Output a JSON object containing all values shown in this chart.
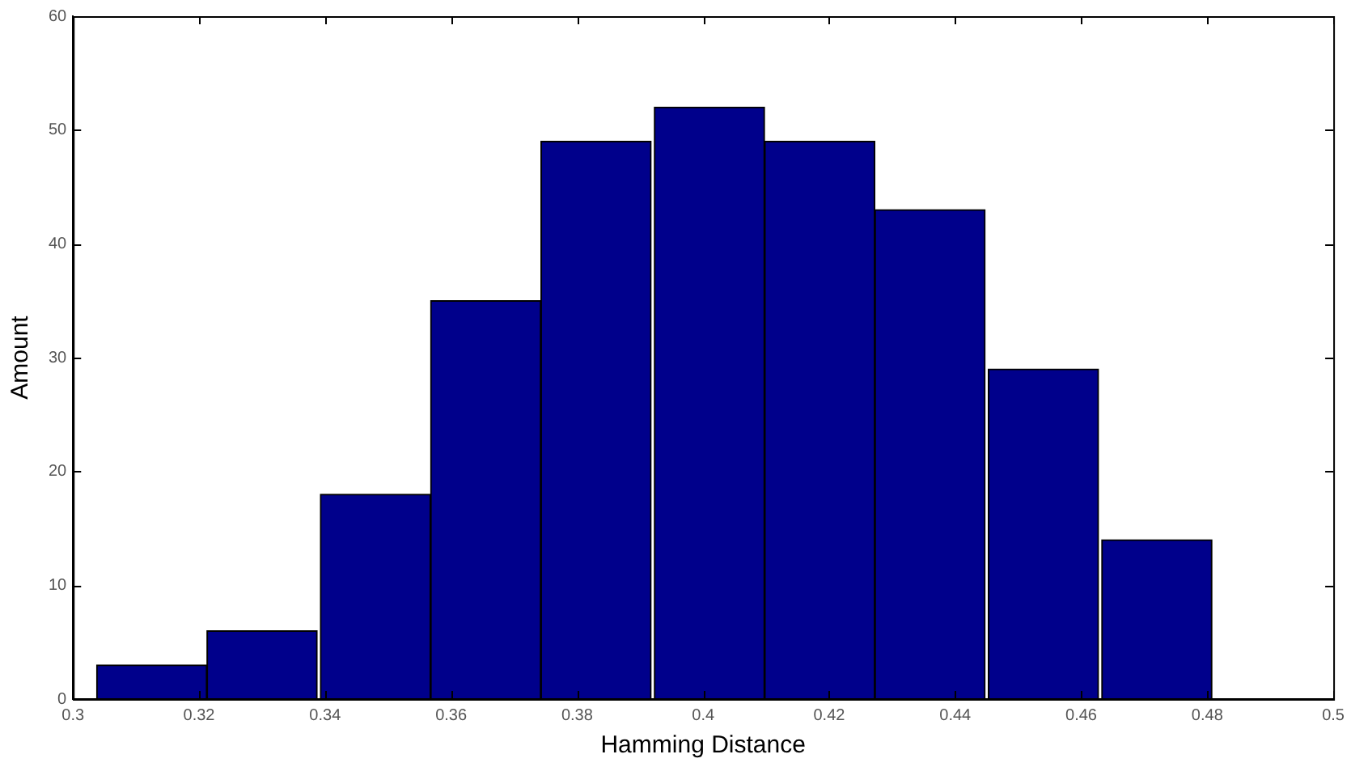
{
  "chart_data": {
    "type": "histogram",
    "xlabel": "Hamming Distance",
    "ylabel": "Amount",
    "bins": [
      0.304,
      0.321,
      0.339,
      0.357,
      0.374,
      0.392,
      0.41,
      0.427,
      0.445,
      0.463,
      0.481
    ],
    "values": [
      3,
      6,
      18,
      35,
      49,
      52,
      49,
      43,
      29,
      14
    ],
    "color": "#00008b",
    "xlim": [
      0.3,
      0.5
    ],
    "xticks": [
      0.3,
      0.32,
      0.34,
      0.36,
      0.38,
      0.4,
      0.42,
      0.44,
      0.46,
      0.48,
      0.5
    ],
    "ylim": [
      0,
      60
    ],
    "yticks": [
      0,
      10,
      20,
      30,
      40,
      50,
      60
    ],
    "grid": false,
    "legend": false
  }
}
